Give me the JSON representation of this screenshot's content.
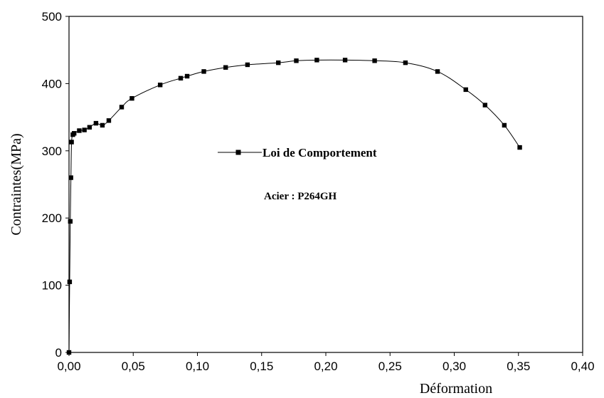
{
  "chart_data": {
    "type": "line",
    "xlabel": "Déformation",
    "ylabel": "Contraintes(MPa)",
    "xlim": [
      0,
      0.4
    ],
    "ylim": [
      0,
      500
    ],
    "x_ticks": [
      "0,00",
      "0,05",
      "0,10",
      "0,15",
      "0,20",
      "0,25",
      "0,30",
      "0,35",
      "0,40"
    ],
    "y_ticks": [
      "0",
      "100",
      "200",
      "300",
      "400",
      "500"
    ],
    "x_tick_values": [
      0,
      0.05,
      0.1,
      0.15,
      0.2,
      0.25,
      0.3,
      0.35,
      0.4
    ],
    "y_tick_values": [
      0,
      100,
      200,
      300,
      400,
      500
    ],
    "grid": false,
    "legend_position": "center-left",
    "annotation": "Acier : P264GH",
    "series": [
      {
        "name": "Loi de Comportement",
        "marker": "square",
        "color": "#000000",
        "x": [
          0.0,
          0.0005,
          0.001,
          0.0015,
          0.002,
          0.003,
          0.004,
          0.008,
          0.012,
          0.016,
          0.021,
          0.026,
          0.031,
          0.041,
          0.049,
          0.071,
          0.087,
          0.092,
          0.105,
          0.122,
          0.139,
          0.163,
          0.177,
          0.193,
          0.215,
          0.238,
          0.262,
          0.287,
          0.309,
          0.324,
          0.339,
          0.351
        ],
        "y": [
          0,
          105,
          195,
          260,
          313,
          324,
          326,
          330,
          331,
          335,
          341,
          338,
          345,
          365,
          378,
          398,
          408,
          411,
          418,
          424,
          428,
          431,
          434,
          435,
          435,
          434,
          431,
          418,
          391,
          368,
          338,
          305
        ]
      }
    ]
  }
}
